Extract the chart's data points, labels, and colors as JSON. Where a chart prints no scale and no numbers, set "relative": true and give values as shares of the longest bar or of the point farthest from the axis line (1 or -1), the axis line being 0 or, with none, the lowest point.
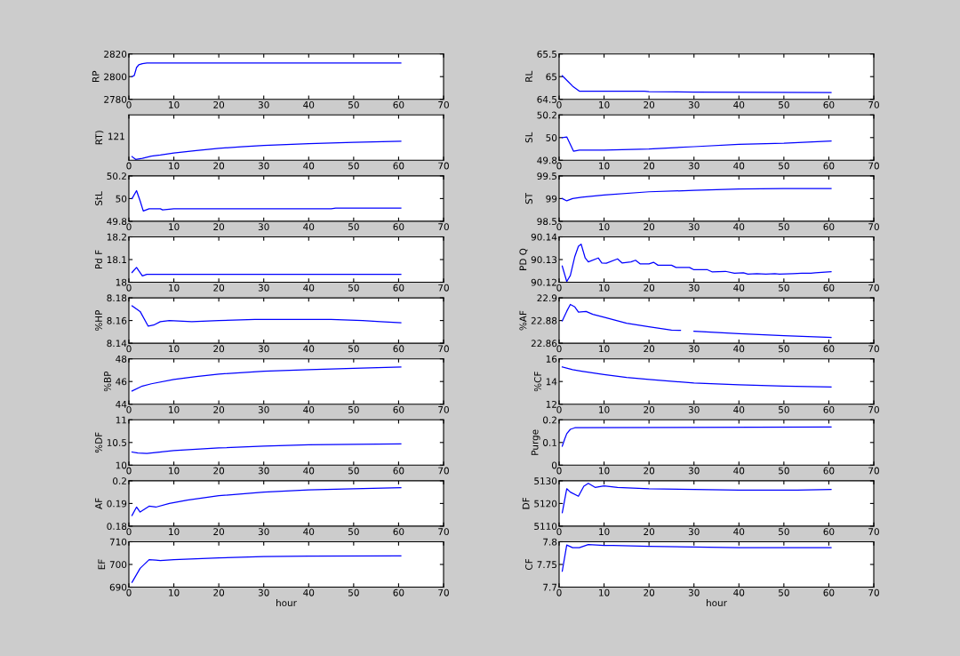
{
  "chart_data": [
    {
      "type": "line",
      "ylabel": "RP",
      "x": [
        0.7,
        1.2,
        1.7,
        2.2,
        3,
        4,
        10,
        20,
        30,
        40,
        50,
        60.5
      ],
      "series": [
        {
          "color": "#0000ff",
          "values": [
            2800,
            2801,
            2808,
            2810.5,
            2811.5,
            2812,
            2812,
            2812,
            2812,
            2812,
            2812,
            2812
          ]
        }
      ],
      "xlim": [
        0,
        70
      ],
      "xticks": [
        0,
        10,
        20,
        30,
        40,
        50,
        60,
        70
      ],
      "ylim": [
        2780,
        2820
      ],
      "yticks": [
        2780,
        2800,
        2820
      ]
    },
    {
      "type": "line",
      "ylabel": "RL",
      "x": [
        0.7,
        2,
        3,
        4.5,
        10,
        19,
        20,
        30,
        60.5
      ],
      "series": [
        {
          "color": "#0000ff",
          "values": [
            65.02,
            64.89,
            64.79,
            64.68,
            64.68,
            64.68,
            64.67,
            64.66,
            64.65
          ]
        }
      ],
      "xlim": [
        0,
        70
      ],
      "xticks": [
        0,
        10,
        20,
        30,
        40,
        50,
        60,
        70
      ],
      "ylim": [
        64.5,
        65.5
      ],
      "yticks": [
        64.5,
        65,
        65.5
      ]
    },
    {
      "type": "line",
      "ylabel": "RT)",
      "relative": true,
      "annotations": [
        "121"
      ],
      "x": [
        0.7,
        1.5,
        3,
        5,
        7,
        10,
        15,
        20,
        25,
        30,
        40,
        50,
        60.5
      ],
      "series": [
        {
          "color": "#0000ff",
          "values": [
            0.15,
            0,
            0.06,
            0.18,
            0.24,
            0.35,
            0.48,
            0.61,
            0.69,
            0.77,
            0.87,
            0.94,
            1
          ]
        }
      ],
      "xlim": [
        0,
        70
      ],
      "xticks": [
        0,
        10,
        20,
        30,
        40,
        50,
        60,
        70
      ]
    },
    {
      "type": "line",
      "ylabel": "SL",
      "x": [
        0.7,
        1.7,
        3.2,
        4.5,
        10,
        20,
        30,
        40,
        50,
        60.5
      ],
      "series": [
        {
          "color": "#0000ff",
          "values": [
            50,
            50.006,
            49.88,
            49.89,
            49.89,
            49.9,
            49.92,
            49.94,
            49.95,
            49.97
          ]
        }
      ],
      "xlim": [
        0,
        70
      ],
      "xticks": [
        0,
        10,
        20,
        30,
        40,
        50,
        60,
        70
      ],
      "ylim": [
        49.8,
        50.2
      ],
      "yticks": [
        49.8,
        50,
        50.2
      ]
    },
    {
      "type": "line",
      "ylabel": "StL",
      "x": [
        0.7,
        1.7,
        2.5,
        3.2,
        4.5,
        7,
        7.5,
        10,
        45,
        46,
        60.5
      ],
      "series": [
        {
          "color": "#0000ff",
          "values": [
            50,
            50.07,
            49.98,
            49.89,
            49.91,
            49.91,
            49.9,
            49.91,
            49.91,
            49.915,
            49.915
          ]
        }
      ],
      "xlim": [
        0,
        70
      ],
      "xticks": [
        0,
        10,
        20,
        30,
        40,
        50,
        60,
        70
      ],
      "ylim": [
        49.8,
        50.2
      ],
      "yticks": [
        49.8,
        50,
        50.2
      ]
    },
    {
      "type": "line",
      "ylabel": "ST",
      "x": [
        0.7,
        1.7,
        3,
        5,
        10,
        20,
        30,
        40,
        50,
        60.5
      ],
      "series": [
        {
          "color": "#0000ff",
          "values": [
            99,
            98.95,
            99,
            99.03,
            99.08,
            99.15,
            99.18,
            99.21,
            99.22,
            99.22
          ]
        }
      ],
      "xlim": [
        0,
        70
      ],
      "xticks": [
        0,
        10,
        20,
        30,
        40,
        50,
        60,
        70
      ],
      "ylim": [
        98.5,
        99.5
      ],
      "yticks": [
        98.5,
        99,
        99.5
      ]
    },
    {
      "type": "line",
      "ylabel": "Pd F",
      "x": [
        0.7,
        1.7,
        3,
        4,
        10,
        30,
        60.5
      ],
      "series": [
        {
          "color": "#0000ff",
          "values": [
            18.043,
            18.065,
            18.028,
            18.035,
            18.035,
            18.035,
            18.035
          ]
        }
      ],
      "xlim": [
        0,
        70
      ],
      "xticks": [
        0,
        10,
        20,
        30,
        40,
        50,
        60,
        70
      ],
      "ylim": [
        18,
        18.2
      ],
      "yticks": [
        18,
        18.1,
        18.2
      ]
    },
    {
      "type": "line",
      "ylabel": "PD Q",
      "x": [
        0.7,
        1.7,
        2.5,
        3.5,
        4.3,
        4.9,
        5.8,
        6.5,
        8.7,
        9.5,
        10.5,
        13,
        14,
        16,
        17,
        18,
        20,
        21,
        22,
        25,
        26,
        29,
        30,
        33,
        34,
        37,
        39,
        41,
        42,
        44,
        46,
        48,
        49,
        52,
        54,
        56,
        57,
        60.5
      ],
      "series": [
        {
          "color": "#0000ff",
          "values": [
            90.1271,
            90.1203,
            90.123,
            90.1314,
            90.1359,
            90.1368,
            90.1307,
            90.129,
            90.1307,
            90.1285,
            90.1284,
            90.1303,
            90.1285,
            90.129,
            90.1297,
            90.1281,
            90.1281,
            90.1288,
            90.1275,
            90.1275,
            90.1265,
            90.1265,
            90.1255,
            90.1255,
            90.1246,
            90.1248,
            90.124,
            90.1242,
            90.1236,
            90.1238,
            90.1236,
            90.1238,
            90.1236,
            90.1238,
            90.124,
            90.124,
            90.1242,
            90.1246
          ]
        }
      ],
      "xlim": [
        0,
        70
      ],
      "xticks": [
        0,
        10,
        20,
        30,
        40,
        50,
        60,
        70
      ],
      "ylim": [
        90.12,
        90.14
      ],
      "yticks": [
        90.12,
        90.13,
        90.14
      ]
    },
    {
      "type": "line",
      "ylabel": "%HP",
      "x": [
        0.7,
        2.5,
        4.3,
        5.5,
        7,
        9,
        14,
        20,
        28,
        30,
        45,
        52,
        56,
        60.5
      ],
      "series": [
        {
          "color": "#0000ff",
          "values": [
            8.173,
            8.168,
            8.155,
            8.156,
            8.159,
            8.16,
            8.159,
            8.16,
            8.161,
            8.161,
            8.161,
            8.16,
            8.159,
            8.158
          ]
        }
      ],
      "xlim": [
        0,
        70
      ],
      "xticks": [
        0,
        10,
        20,
        30,
        40,
        50,
        60,
        70
      ],
      "ylim": [
        8.14,
        8.18
      ],
      "yticks": [
        8.14,
        8.16,
        8.18
      ]
    },
    {
      "type": "line",
      "ylabel": "%AF",
      "x": [
        0.7,
        1.7,
        2.5,
        3.5,
        4.3,
        6,
        7.5,
        10,
        15,
        20,
        25,
        27,
        28.5,
        30,
        40,
        50,
        60.5
      ],
      "series": [
        {
          "color": "#0000ff",
          "values": [
            22.8797,
            22.8882,
            22.8942,
            22.892,
            22.8874,
            22.888,
            22.8855,
            22.8829,
            22.8776,
            22.8745,
            22.8716,
            22.8713,
            null,
            22.8705,
            22.8684,
            22.8666,
            22.865
          ]
        }
      ],
      "xlim": [
        0,
        70
      ],
      "xticks": [
        0,
        10,
        20,
        30,
        40,
        50,
        60,
        70
      ],
      "ylim": [
        22.86,
        22.9
      ],
      "yticks": [
        22.86,
        22.88,
        22.9
      ]
    },
    {
      "type": "line",
      "ylabel": "%BP",
      "x": [
        0.7,
        3,
        5,
        10,
        15,
        20,
        30,
        40,
        50,
        60.5
      ],
      "series": [
        {
          "color": "#0000ff",
          "values": [
            45.16,
            45.6,
            45.8,
            46.18,
            46.43,
            46.66,
            46.91,
            47.04,
            47.16,
            47.27
          ]
        }
      ],
      "xlim": [
        0,
        70
      ],
      "xticks": [
        0,
        10,
        20,
        30,
        40,
        50,
        60,
        70
      ],
      "ylim": [
        44,
        48
      ],
      "yticks": [
        44,
        46,
        48
      ]
    },
    {
      "type": "line",
      "ylabel": "%CF",
      "x": [
        0.7,
        3,
        5,
        10,
        15,
        20,
        30,
        40,
        50,
        60.5
      ],
      "series": [
        {
          "color": "#0000ff",
          "values": [
            15.29,
            15.04,
            14.91,
            14.61,
            14.35,
            14.18,
            13.87,
            13.72,
            13.59,
            13.52
          ]
        }
      ],
      "xlim": [
        0,
        70
      ],
      "xticks": [
        0,
        10,
        20,
        30,
        40,
        50,
        60,
        70
      ],
      "ylim": [
        12,
        16
      ],
      "yticks": [
        12,
        14,
        16
      ]
    },
    {
      "type": "line",
      "ylabel": "%DF",
      "x": [
        0.7,
        2,
        4,
        10,
        20,
        30,
        40,
        50,
        60.5
      ],
      "series": [
        {
          "color": "#0000ff",
          "values": [
            10.29,
            10.27,
            10.26,
            10.32,
            10.38,
            10.42,
            10.45,
            10.46,
            10.47
          ]
        }
      ],
      "xlim": [
        0,
        70
      ],
      "xticks": [
        0,
        10,
        20,
        30,
        40,
        50,
        60,
        70
      ],
      "ylim": [
        10,
        11
      ],
      "yticks": [
        10,
        10.5,
        11
      ]
    },
    {
      "type": "line",
      "ylabel": "Purge",
      "x": [
        0.7,
        1.2,
        1.7,
        2.5,
        3.5,
        60.5
      ],
      "series": [
        {
          "color": "#0000ff",
          "values": [
            0.084,
            0.113,
            0.139,
            0.158,
            0.165,
            0.168
          ]
        }
      ],
      "xlim": [
        0,
        70
      ],
      "xticks": [
        0,
        10,
        20,
        30,
        40,
        50,
        60,
        70
      ],
      "ylim": [
        0,
        0.2
      ],
      "yticks": [
        0,
        0.1,
        0.2
      ]
    },
    {
      "type": "line",
      "ylabel": "AF",
      "x": [
        0.7,
        1.7,
        2.5,
        4.5,
        6,
        9,
        13,
        20,
        30,
        40,
        50,
        60.5
      ],
      "series": [
        {
          "color": "#0000ff",
          "values": [
            0.1847,
            0.1884,
            0.1862,
            0.1888,
            0.1884,
            0.19,
            0.1915,
            0.1934,
            0.195,
            0.196,
            0.1965,
            0.197
          ]
        }
      ],
      "xlim": [
        0,
        70
      ],
      "xticks": [
        0,
        10,
        20,
        30,
        40,
        50,
        60,
        70
      ],
      "ylim": [
        0.18,
        0.2
      ],
      "yticks": [
        0.18,
        0.19,
        0.2
      ]
    },
    {
      "type": "line",
      "ylabel": "DF",
      "x": [
        0.7,
        1.7,
        2.5,
        4.3,
        5.5,
        6.5,
        8,
        10,
        13,
        20,
        30,
        40,
        53,
        60.5
      ],
      "series": [
        {
          "color": "#0000ff",
          "values": [
            5115.9,
            5126.5,
            5125,
            5123.2,
            5127.6,
            5128.9,
            5127.1,
            5127.8,
            5127.1,
            5126.5,
            5126.2,
            5125.9,
            5125.9,
            5126.2
          ]
        }
      ],
      "xlim": [
        0,
        70
      ],
      "xticks": [
        0,
        10,
        20,
        30,
        40,
        50,
        60,
        70
      ],
      "ylim": [
        5110,
        5130
      ],
      "yticks": [
        5110,
        5120,
        5130
      ]
    },
    {
      "type": "line",
      "ylabel": "EF",
      "xlabel": "hour",
      "x": [
        0.7,
        2.5,
        4.5,
        6,
        7,
        10,
        20,
        30,
        40,
        60.5
      ],
      "series": [
        {
          "color": "#0000ff",
          "values": [
            692.1,
            698.3,
            702.1,
            701.9,
            701.7,
            702.1,
            702.9,
            703.5,
            703.7,
            703.8
          ]
        }
      ],
      "xlim": [
        0,
        70
      ],
      "xticks": [
        0,
        10,
        20,
        30,
        40,
        50,
        60,
        70
      ],
      "ylim": [
        690,
        710
      ],
      "yticks": [
        690,
        700,
        710
      ]
    },
    {
      "type": "line",
      "ylabel": "CF",
      "xlabel": "hour",
      "x": [
        0.7,
        1.7,
        3,
        4.5,
        6.5,
        10,
        12,
        20,
        40,
        60.5
      ],
      "series": [
        {
          "color": "#0000ff",
          "values": [
            7.735,
            7.793,
            7.787,
            7.787,
            7.794,
            7.792,
            7.792,
            7.79,
            7.787,
            7.787
          ]
        }
      ],
      "xlim": [
        0,
        70
      ],
      "xticks": [
        0,
        10,
        20,
        30,
        40,
        50,
        60,
        70
      ],
      "ylim": [
        7.7,
        7.8
      ],
      "yticks": [
        7.7,
        7.75,
        7.8
      ]
    }
  ]
}
